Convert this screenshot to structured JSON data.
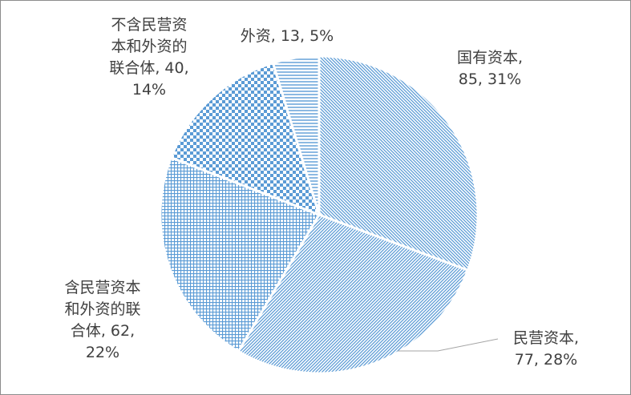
{
  "chart_data": {
    "type": "pie",
    "start_angle_deg": 0,
    "direction": "clockwise",
    "slices": [
      {
        "name": "国有资本",
        "value": 85,
        "percent": "31%",
        "label": "国有资本,\n85, 31%",
        "pattern": "diag-down"
      },
      {
        "name": "民营资本",
        "value": 77,
        "percent": "28%",
        "label": "民营资本,\n77, 28%",
        "pattern": "diag-up"
      },
      {
        "name": "含民营资本和外资的联合体",
        "value": 62,
        "percent": "22%",
        "label": "含民营资本\n和外资的联\n合体, 62,\n22%",
        "pattern": "grid"
      },
      {
        "name": "不含民营资本和外资的联合体",
        "value": 40,
        "percent": "14%",
        "label": "不含民营资\n本和外资的\n联合体, 40,\n14%",
        "pattern": "checker"
      },
      {
        "name": "外资",
        "value": 13,
        "percent": "5%",
        "label": "外资, 13, 5%",
        "pattern": "horiz"
      }
    ],
    "colors": {
      "pattern_fg": "#5b9bd5",
      "pattern_bg": "#ffffff",
      "separator": "#ffffff",
      "leader": "#a6a6a6"
    }
  }
}
